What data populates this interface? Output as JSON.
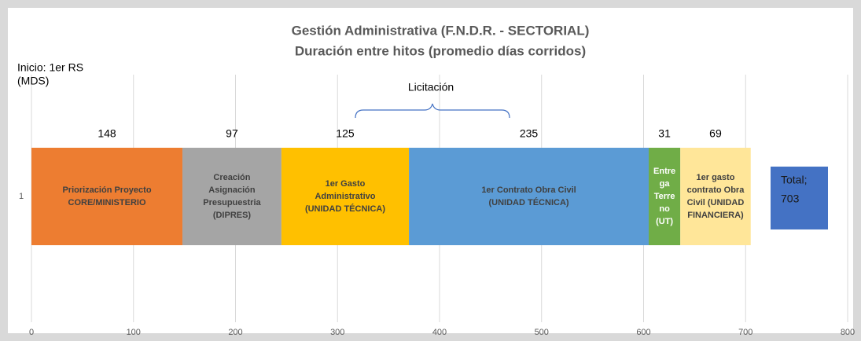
{
  "chart_data": {
    "type": "stacked-bar-horizontal",
    "title": [
      "Gestión Administrativa (F.N.D.R. - SECTORIAL)",
      "Duración entre hitos (promedio días corridos)"
    ],
    "annotations": {
      "start": [
        "Inicio: 1er RS",
        "(MDS)"
      ],
      "bracket": "Licitación"
    },
    "categories": [
      "1"
    ],
    "series": [
      {
        "name": [
          "Priorización Proyecto",
          "CORE/MINISTERIO"
        ],
        "color": "#ED7D31",
        "values": [
          148
        ]
      },
      {
        "name": [
          "Creación",
          "Asignación",
          "Presupuestria",
          "(DIPRES)"
        ],
        "color": "#A5A5A5",
        "values": [
          97
        ]
      },
      {
        "name": [
          "1er Gasto",
          "Administrativo",
          "(UNIDAD TÉCNICA)"
        ],
        "color": "#FFC000",
        "values": [
          125
        ]
      },
      {
        "name": [
          "1er Contrato  Obra Civil",
          "(UNIDAD TÉCNICA)"
        ],
        "color": "#5B9BD5",
        "values": [
          235
        ]
      },
      {
        "name": [
          "Entre",
          "ga",
          "Terre",
          "no",
          "(UT)"
        ],
        "color": "#70AD47",
        "values": [
          31
        ]
      },
      {
        "name": [
          "1er gasto",
          "contrato Obra",
          "Civil (UNIDAD",
          "FINANCIERA)"
        ],
        "color": "#FFE699",
        "values": [
          69
        ]
      }
    ],
    "total": {
      "label": [
        "Total;",
        "703"
      ],
      "color": "#4472C4"
    },
    "xlim": [
      0,
      800
    ],
    "xticks": [
      0,
      100,
      200,
      300,
      400,
      500,
      600,
      700,
      800
    ],
    "grid": true
  }
}
